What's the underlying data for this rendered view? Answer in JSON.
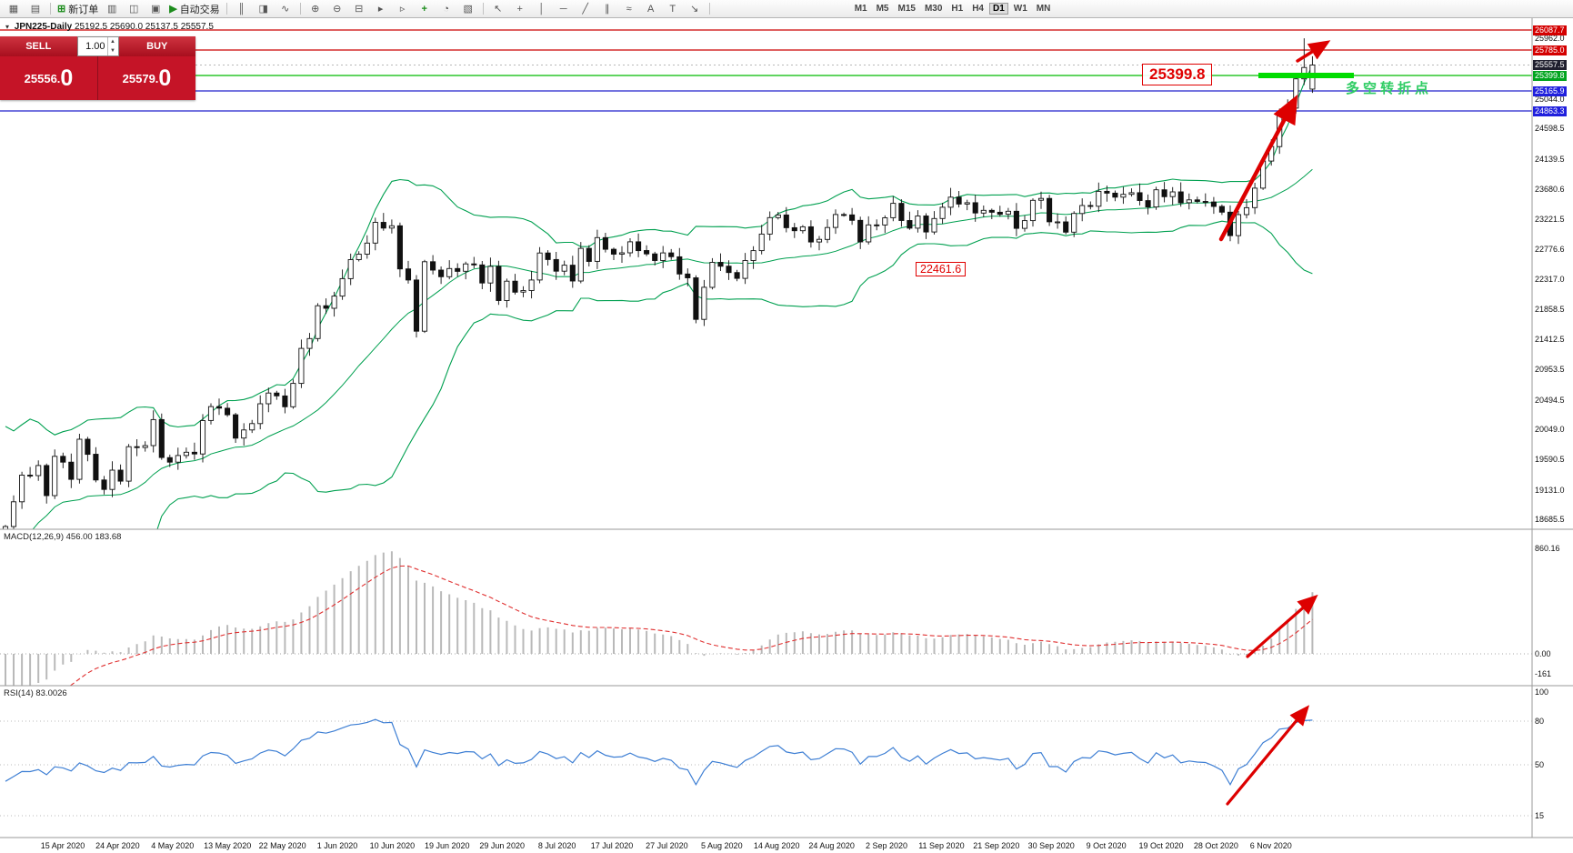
{
  "toolbar": {
    "items": [
      {
        "name": "new-chart-button",
        "glyph": "▦"
      },
      {
        "name": "chart-profiles-button",
        "glyph": "▤"
      },
      {
        "name": "sep"
      },
      {
        "name": "new-order-button",
        "glyph": "⊞",
        "cls": "g-green",
        "label": "新订单"
      },
      {
        "name": "market-watch-button",
        "glyph": "▥"
      },
      {
        "name": "navigator-button",
        "glyph": "◫"
      },
      {
        "name": "terminal-button",
        "glyph": "▣"
      },
      {
        "name": "autotrade-button",
        "glyph": "▶",
        "cls": "g-green",
        "label": "自动交易"
      },
      {
        "name": "sep"
      },
      {
        "name": "bar-chart-button",
        "glyph": "║"
      },
      {
        "name": "candlestick-chart-button",
        "glyph": "◨"
      },
      {
        "name": "line-chart-button",
        "glyph": "∿"
      },
      {
        "name": "sep"
      },
      {
        "name": "zoom-in-button",
        "glyph": "⊕"
      },
      {
        "name": "zoom-out-button",
        "glyph": "⊖"
      },
      {
        "name": "tile-windows-button",
        "glyph": "⊟"
      },
      {
        "name": "auto-scroll-button",
        "glyph": "▸"
      },
      {
        "name": "chart-shift-button",
        "glyph": "▹"
      },
      {
        "name": "indicators-button",
        "glyph": "+",
        "cls": "g-green"
      },
      {
        "name": "periods-button",
        "glyph": "◔"
      },
      {
        "name": "templates-button",
        "glyph": "▧"
      },
      {
        "name": "sep"
      },
      {
        "name": "cursor-button",
        "glyph": "↖"
      },
      {
        "name": "crosshair-button",
        "glyph": "+"
      },
      {
        "name": "vertical-line-button",
        "glyph": "│"
      },
      {
        "name": "horizontal-line-button",
        "glyph": "─"
      },
      {
        "name": "trendline-button",
        "glyph": "╱"
      },
      {
        "name": "channel-button",
        "glyph": "∥"
      },
      {
        "name": "fibonacci-button",
        "glyph": "≈"
      },
      {
        "name": "text-button",
        "glyph": "A"
      },
      {
        "name": "label-button",
        "glyph": "T"
      },
      {
        "name": "arrows-button",
        "glyph": "↘"
      },
      {
        "name": "sep"
      }
    ],
    "timeframes": [
      "M1",
      "M5",
      "M15",
      "M30",
      "H1",
      "H4",
      "D1",
      "W1",
      "MN"
    ],
    "active_timeframe": "D1"
  },
  "chart_header": {
    "symbol": "JPN225-Daily",
    "ohlc": "25192.5 25690.0 25137.5 25557.5"
  },
  "trade_panel": {
    "sell_label": "SELL",
    "buy_label": "BUY",
    "volume": "1.00",
    "sell_price_main": "25556.",
    "sell_price_big": "0",
    "buy_price_main": "25579.",
    "buy_price_big": "0"
  },
  "annotations": {
    "level_label": "25399.8",
    "turning_point": "多空转折点",
    "support_label": "22461.6"
  },
  "indicators": {
    "macd_label": "MACD(12,26,9) 456.00 183.68",
    "rsi_label": "RSI(14) 83.0026"
  },
  "price_scale": {
    "plain_ticks": [
      "25962.0",
      "25044.0",
      "24598.5",
      "24139.5",
      "23680.6",
      "23221.5",
      "22776.6",
      "22317.0",
      "21858.5",
      "21412.5",
      "20953.5",
      "20494.5",
      "20049.0",
      "19590.5",
      "19131.0",
      "18685.5"
    ],
    "markers": [
      {
        "text": "26087.7",
        "bg": "#d40000"
      },
      {
        "text": "25785.0",
        "bg": "#d40000"
      },
      {
        "text": "25557.5",
        "bg": "#1f1f2e"
      },
      {
        "text": "25399.8",
        "bg": "#00a41e"
      },
      {
        "text": "25165.9",
        "bg": "#2020dd"
      },
      {
        "text": "24863.3",
        "bg": "#2020dd"
      }
    ],
    "macd_ticks": [
      {
        "text": "860.16",
        "v": 860.16
      },
      {
        "text": "0.00",
        "v": 0
      },
      {
        "text": "-161",
        "v": -161
      }
    ],
    "rsi_ticks": [
      {
        "text": "100",
        "v": 100
      },
      {
        "text": "80",
        "v": 80
      },
      {
        "text": "50",
        "v": 50
      },
      {
        "text": "15",
        "v": 15
      }
    ]
  },
  "chart_data": {
    "type": "candlestick",
    "symbol": "JPN225",
    "timeframe": "Daily",
    "ylim": [
      18685.5,
      26087.7
    ],
    "last_candle": {
      "open": 25192.5,
      "high": 25690.0,
      "low": 25137.5,
      "close": 25557.5
    },
    "pre_closes": [
      21954,
      21143,
      20749,
      19698,
      19868,
      19416,
      18560,
      17431,
      16553,
      16888,
      17011,
      18092,
      18890,
      19547,
      18665,
      19085,
      18985,
      19389,
      19085,
      18917,
      18664,
      18065,
      17821,
      17820
    ],
    "closes": [
      18576,
      18950,
      19353,
      19346,
      19499,
      19043,
      19638,
      19550,
      19290,
      19897,
      19669,
      19280,
      19137,
      19429,
      19262,
      19783,
      19771,
      19800,
      20193,
      19619,
      19550,
      19650,
      19700,
      19674,
      20179,
      20390,
      20366,
      20267,
      19914,
      20037,
      20133,
      20433,
      20595,
      20552,
      20388,
      20741,
      21271,
      21419,
      21916,
      21878,
      22062,
      22326,
      22614,
      22696,
      22864,
      23178,
      23091,
      23125,
      22473,
      22305,
      21531,
      22582,
      22456,
      22355,
      22479,
      22437,
      22549,
      22534,
      22260,
      22512,
      21995,
      22288,
      22122,
      22146,
      22306,
      22714,
      22615,
      22439,
      22530,
      22291,
      22785,
      22587,
      22946,
      22770,
      22696,
      22717,
      22884,
      22751,
      22700,
      22600,
      22715,
      22657,
      22397,
      22339,
      21710,
      22195,
      22573,
      22514,
      22418,
      22330,
      22600,
      22750,
      23000,
      23249,
      23289,
      23096,
      23051,
      23110,
      22880,
      22920,
      23100,
      23296,
      23290,
      23208,
      22882,
      23139,
      23138,
      23247,
      23465,
      23205,
      23089,
      23274,
      23032,
      23235,
      23406,
      23559,
      23454,
      23475,
      23319,
      23360,
      23331,
      23300,
      23346,
      23087,
      23204,
      23511,
      23539,
      23185,
      23185,
      23029,
      23312,
      23433,
      23422,
      23647,
      23620,
      23559,
      23601,
      23626,
      23507,
      23411,
      23671,
      23567,
      23639,
      23474,
      23517,
      23494,
      23486,
      23419,
      23332,
      22977,
      23295,
      23400,
      23695,
      24105,
      24325,
      24839,
      24906,
      25349,
      25521,
      25557.5
    ],
    "candle_overrides": {
      "158": [
        25349,
        25962,
        25255,
        25521
      ],
      "159": [
        25192.5,
        25690.0,
        25137.5,
        25557.5
      ]
    },
    "overlays": {
      "bollinger": {
        "period": 20,
        "deviation": 2,
        "color": "#00a050"
      },
      "levels": [
        {
          "price": 26087.7,
          "color": "#cc0000"
        },
        {
          "price": 25785.0,
          "color": "#cc0000"
        },
        {
          "price": 25399.8,
          "color": "#00bb00"
        },
        {
          "price": 25165.9,
          "color": "#2222cc"
        },
        {
          "price": 24863.3,
          "color": "#2222cc"
        }
      ]
    },
    "indicator_panes": [
      {
        "type": "macd",
        "params": [
          12,
          26,
          9
        ],
        "value_labels": [
          "456.00",
          "183.68"
        ],
        "scale": [
          -161,
          860.16
        ]
      },
      {
        "type": "rsi",
        "params": [
          14
        ],
        "value_labels": [
          "83.0026"
        ],
        "levels": [
          80,
          50,
          15
        ]
      }
    ],
    "x_labels": [
      "15 Apr 2020",
      "24 Apr 2020",
      "4 May 2020",
      "13 May 2020",
      "22 May 2020",
      "1 Jun 2020",
      "10 Jun 2020",
      "19 Jun 2020",
      "29 Jun 2020",
      "8 Jul 2020",
      "17 Jul 2020",
      "27 Jul 2020",
      "5 Aug 2020",
      "14 Aug 2020",
      "24 Aug 2020",
      "2 Sep 2020",
      "11 Sep 2020",
      "21 Sep 2020",
      "30 Sep 2020",
      "9 Oct 2020",
      "19 Oct 2020",
      "28 Oct 2020",
      "6 Nov 2020"
    ]
  }
}
